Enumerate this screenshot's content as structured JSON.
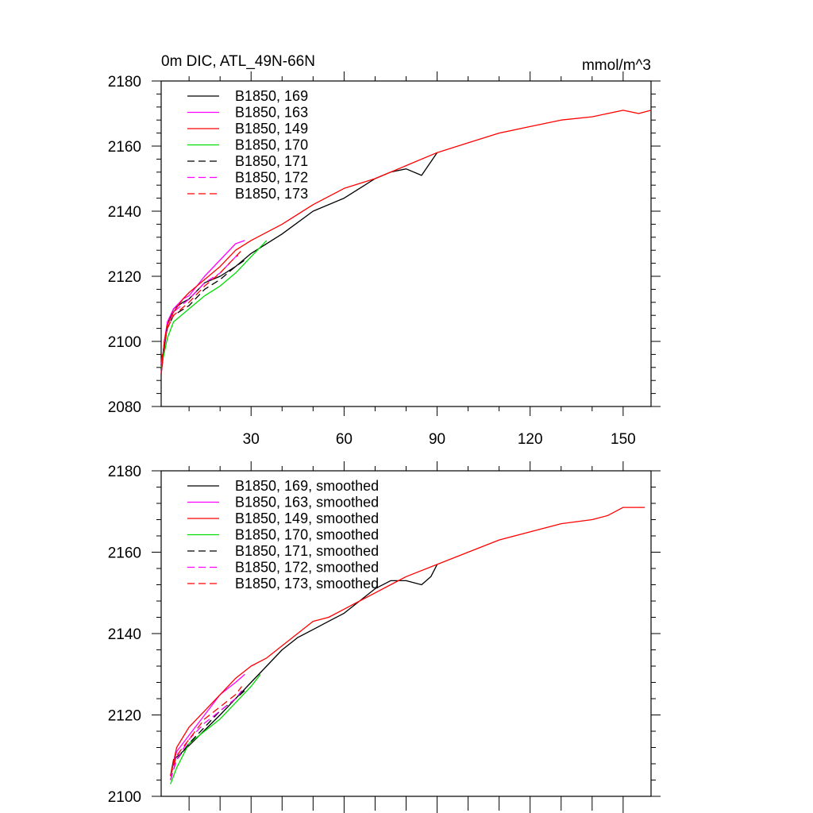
{
  "chart_data": [
    {
      "type": "line",
      "title": "0m DIC, ATL_49N-66N",
      "units": "mmol/m^3",
      "xlim": [
        1,
        159
      ],
      "ylim": [
        2080,
        2180
      ],
      "xticks": [
        30,
        60,
        90,
        120,
        150
      ],
      "xtick_labels": [
        "30",
        "60",
        "90",
        "120",
        "150"
      ],
      "yticks": [
        2080,
        2100,
        2120,
        2140,
        2160,
        2180
      ],
      "ytick_labels": [
        "2080",
        "2100",
        "2120",
        "2140",
        "2160",
        "2180"
      ],
      "legend_position": "top-left",
      "series": [
        {
          "name": "B1850, 169",
          "color": "#000000",
          "dash": "solid",
          "x": [
            1,
            2,
            3,
            5,
            8,
            10,
            15,
            20,
            25,
            30,
            40,
            50,
            60,
            65,
            70,
            75,
            80,
            85,
            90
          ],
          "values": [
            2090,
            2098,
            2105,
            2110,
            2112,
            2113,
            2118,
            2120,
            2123,
            2127,
            2133,
            2140,
            2144,
            2147,
            2150,
            2152,
            2153,
            2151,
            2158
          ]
        },
        {
          "name": "B1850, 163",
          "color": "#ff00ff",
          "dash": "solid",
          "x": [
            1,
            2,
            3,
            5,
            8,
            10,
            15,
            20,
            25,
            28
          ],
          "values": [
            2090,
            2100,
            2106,
            2110,
            2113,
            2114,
            2120,
            2125,
            2130,
            2131
          ]
        },
        {
          "name": "B1850, 149",
          "color": "#ff0000",
          "dash": "solid",
          "x": [
            1,
            2,
            3,
            5,
            8,
            10,
            15,
            20,
            25,
            30,
            40,
            50,
            60,
            70,
            80,
            90,
            100,
            110,
            120,
            130,
            140,
            150,
            155,
            159
          ],
          "values": [
            2090,
            2100,
            2105,
            2109,
            2113,
            2115,
            2119,
            2123,
            2128,
            2131,
            2136,
            2142,
            2147,
            2150,
            2154,
            2158,
            2161,
            2164,
            2166,
            2168,
            2169,
            2171,
            2170,
            2171
          ]
        },
        {
          "name": "B1850, 170",
          "color": "#00dd00",
          "dash": "solid",
          "x": [
            1,
            3,
            5,
            10,
            15,
            20,
            25,
            30,
            35
          ],
          "values": [
            2092,
            2101,
            2106,
            2110,
            2114,
            2117,
            2121,
            2126,
            2131
          ]
        },
        {
          "name": "B1850, 171",
          "color": "#000000",
          "dash": "dashed",
          "x": [
            1,
            3,
            5,
            10,
            15,
            20,
            25,
            28
          ],
          "values": [
            2093,
            2104,
            2108,
            2111,
            2116,
            2119,
            2123,
            2125
          ]
        },
        {
          "name": "B1850, 172",
          "color": "#ff00ff",
          "dash": "dashed",
          "x": [
            1,
            3,
            5,
            10,
            15,
            20,
            25,
            27
          ],
          "values": [
            2093,
            2105,
            2109,
            2113,
            2118,
            2121,
            2126,
            2127
          ]
        },
        {
          "name": "B1850, 173",
          "color": "#ff0000",
          "dash": "dashed",
          "x": [
            1,
            3,
            5,
            10,
            15,
            20,
            25,
            27
          ],
          "values": [
            2094,
            2104,
            2108,
            2112,
            2117,
            2121,
            2126,
            2128
          ]
        }
      ]
    },
    {
      "type": "line",
      "title": "",
      "units": "",
      "xlim": [
        1,
        159
      ],
      "ylim": [
        2100,
        2180
      ],
      "xticks": [
        30,
        60,
        90,
        120,
        150
      ],
      "xtick_labels": [],
      "yticks": [
        2100,
        2120,
        2140,
        2160,
        2180
      ],
      "ytick_labels": [
        "2100",
        "2120",
        "2140",
        "2160",
        "2180"
      ],
      "legend_position": "top-left",
      "series": [
        {
          "name": "B1850, 169, smoothed",
          "color": "#000000",
          "dash": "solid",
          "x": [
            4,
            5,
            8,
            12,
            16,
            20,
            25,
            30,
            35,
            40,
            45,
            50,
            55,
            60,
            65,
            70,
            75,
            80,
            85,
            88,
            90
          ],
          "values": [
            2105,
            2109,
            2111,
            2114,
            2117,
            2120,
            2124,
            2128,
            2132,
            2136,
            2139,
            2141,
            2143,
            2145,
            2148,
            2151,
            2153,
            2153,
            2152,
            2154,
            2157
          ]
        },
        {
          "name": "B1850, 163, smoothed",
          "color": "#ff00ff",
          "dash": "solid",
          "x": [
            4,
            6,
            10,
            15,
            20,
            25,
            28
          ],
          "values": [
            2105,
            2111,
            2115,
            2120,
            2125,
            2128,
            2130
          ]
        },
        {
          "name": "B1850, 149, smoothed",
          "color": "#ff0000",
          "dash": "solid",
          "x": [
            4,
            6,
            10,
            15,
            20,
            25,
            30,
            35,
            40,
            45,
            50,
            55,
            60,
            65,
            70,
            75,
            80,
            90,
            100,
            110,
            120,
            130,
            140,
            145,
            150,
            155,
            157
          ],
          "values": [
            2105,
            2112,
            2117,
            2121,
            2125,
            2129,
            2132,
            2134,
            2137,
            2140,
            2143,
            2144,
            2146,
            2148,
            2150,
            2152,
            2154,
            2157,
            2160,
            2163,
            2165,
            2167,
            2168,
            2169,
            2171,
            2171,
            2171
          ]
        },
        {
          "name": "B1850, 170, smoothed",
          "color": "#00dd00",
          "dash": "solid",
          "x": [
            4,
            6,
            10,
            15,
            20,
            25,
            30,
            33
          ],
          "values": [
            2103,
            2107,
            2113,
            2116,
            2119,
            2123,
            2127,
            2130
          ]
        },
        {
          "name": "B1850, 171, smoothed",
          "color": "#000000",
          "dash": "dashed",
          "x": [
            4,
            6,
            10,
            15,
            20,
            25,
            28
          ],
          "values": [
            2104,
            2109,
            2113,
            2117,
            2121,
            2124,
            2126
          ]
        },
        {
          "name": "B1850, 172, smoothed",
          "color": "#ff00ff",
          "dash": "dashed",
          "x": [
            4,
            6,
            10,
            15,
            20,
            25,
            27
          ],
          "values": [
            2104,
            2109,
            2114,
            2118,
            2121,
            2124,
            2126
          ]
        },
        {
          "name": "B1850, 173, smoothed",
          "color": "#ff0000",
          "dash": "dashed",
          "x": [
            4,
            6,
            10,
            15,
            20,
            25,
            27
          ],
          "values": [
            2105,
            2110,
            2114,
            2119,
            2122,
            2125,
            2127
          ]
        }
      ]
    }
  ]
}
